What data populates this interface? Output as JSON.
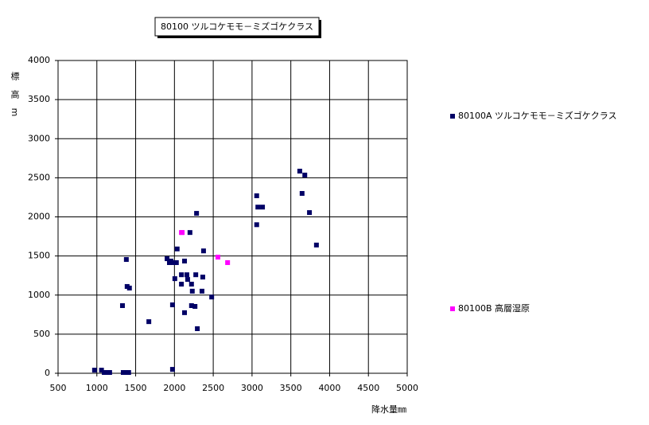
{
  "chart_data": {
    "type": "scatter",
    "title": "80100 ツルコケモモ－ミズゴケクラス",
    "x_label": "降水量㎜",
    "y_label": "標高m",
    "xlim": [
      500,
      5000
    ],
    "xticks": [
      500,
      1000,
      1500,
      2000,
      2500,
      3000,
      3500,
      4000,
      4500,
      5000
    ],
    "ylim": [
      0,
      4000
    ],
    "yticks": [
      0,
      500,
      1000,
      1500,
      2000,
      2500,
      3000,
      3500,
      4000
    ],
    "grid": true,
    "legend": "right",
    "series": [
      {
        "name": "80100A ツルコケモモ－ミズゴケクラス",
        "color": "#000066",
        "x": [
          970,
          1060,
          1095,
          1135,
          1165,
          1340,
          1370,
          1410,
          1330,
          1380,
          1390,
          1420,
          1670,
          1905,
          1935,
          1955,
          1985,
          2025,
          2035,
          2005,
          1975,
          1975,
          2090,
          2090,
          2130,
          2130,
          2160,
          2170,
          2200,
          2220,
          2230,
          2220,
          2265,
          2275,
          2285,
          2295,
          2355,
          2365,
          2375,
          2480,
          3060,
          3060,
          3075,
          3135,
          3615,
          3645,
          3680,
          3740,
          3830
        ],
        "values": [
          40,
          40,
          10,
          10,
          10,
          10,
          10,
          10,
          865,
          1455,
          1110,
          1090,
          660,
          1465,
          1415,
          1435,
          1415,
          1415,
          1590,
          1210,
          875,
          50,
          1260,
          1140,
          1435,
          775,
          1260,
          1200,
          1800,
          1140,
          1050,
          865,
          855,
          1260,
          2045,
          570,
          1050,
          1230,
          1565,
          975,
          2270,
          1900,
          2125,
          2125,
          2585,
          2300,
          2535,
          2055,
          1640
        ]
      },
      {
        "name": "80100B 高層湿原",
        "color": "#ff00ff",
        "x": [
          2090,
          2100,
          2560,
          2685
        ],
        "values": [
          1800,
          1800,
          1485,
          1415
        ]
      }
    ]
  }
}
